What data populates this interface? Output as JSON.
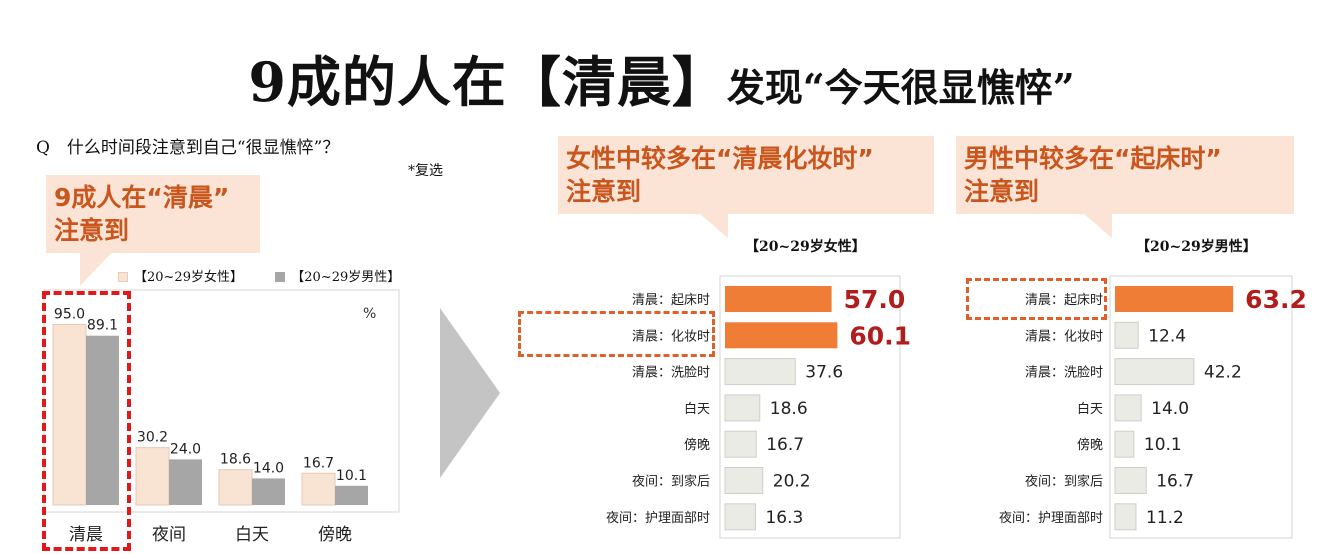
{
  "title": {
    "main": "9成的人在【清晨】",
    "sub": "发现“今天很显憔悴”"
  },
  "question": "Q　什么时间段注意到自己“很显憔悴”？",
  "multi_select_note": "*复选",
  "callouts": {
    "left": [
      "9成人在“清晨”",
      "注意到"
    ],
    "female": [
      "女性中较多在“清晨化妆时”",
      "注意到"
    ],
    "male": [
      "男性中较多在“起床时”",
      "注意到"
    ]
  },
  "colors": {
    "female_bar": "#f9e3d3",
    "male_bar": "#a6a6a6",
    "highlight_bar": "#ef7d35",
    "plain_bar": "#ebebe6",
    "callout_bg": "#fbe4d6",
    "callout_text": "#c9561d",
    "value_highlight": "#b11d1d"
  },
  "chart_data": [
    {
      "type": "bar",
      "legend": [
        "【20~29岁女性】",
        "【20~29岁男性】"
      ],
      "legend_position": "top",
      "unit_label": "%",
      "categories": [
        "清晨",
        "夜间",
        "白天",
        "傍晚"
      ],
      "series": [
        {
          "name": "【20~29岁女性】",
          "values": [
            95.0,
            30.2,
            18.6,
            16.7
          ]
        },
        {
          "name": "【20~29岁男性】",
          "values": [
            89.1,
            24.0,
            14.0,
            10.1
          ]
        }
      ],
      "ylim": [
        0,
        100
      ]
    },
    {
      "type": "bar",
      "orientation": "horizontal",
      "title": "【20~29岁女性】",
      "categories": [
        "清晨：起床时",
        "清晨：化妆时",
        "清晨：洗脸时",
        "白天",
        "傍晚",
        "夜间：到家后",
        "夜间：护理面部时"
      ],
      "values": [
        57.0,
        60.1,
        37.6,
        18.6,
        16.7,
        20.2,
        16.3
      ],
      "highlighted": [
        "清晨：起床时",
        "清晨：化妆时"
      ],
      "xlim": [
        0,
        65
      ]
    },
    {
      "type": "bar",
      "orientation": "horizontal",
      "title": "【20~29岁男性】",
      "categories": [
        "清晨：起床时",
        "清晨：化妆时",
        "清晨：洗脸时",
        "白天",
        "傍晚",
        "夜间：到家后",
        "夜间：护理面部时"
      ],
      "values": [
        63.2,
        12.4,
        42.2,
        14.0,
        10.1,
        16.7,
        11.2
      ],
      "highlighted": [
        "清晨：起床时"
      ],
      "xlim": [
        0,
        65
      ]
    }
  ]
}
